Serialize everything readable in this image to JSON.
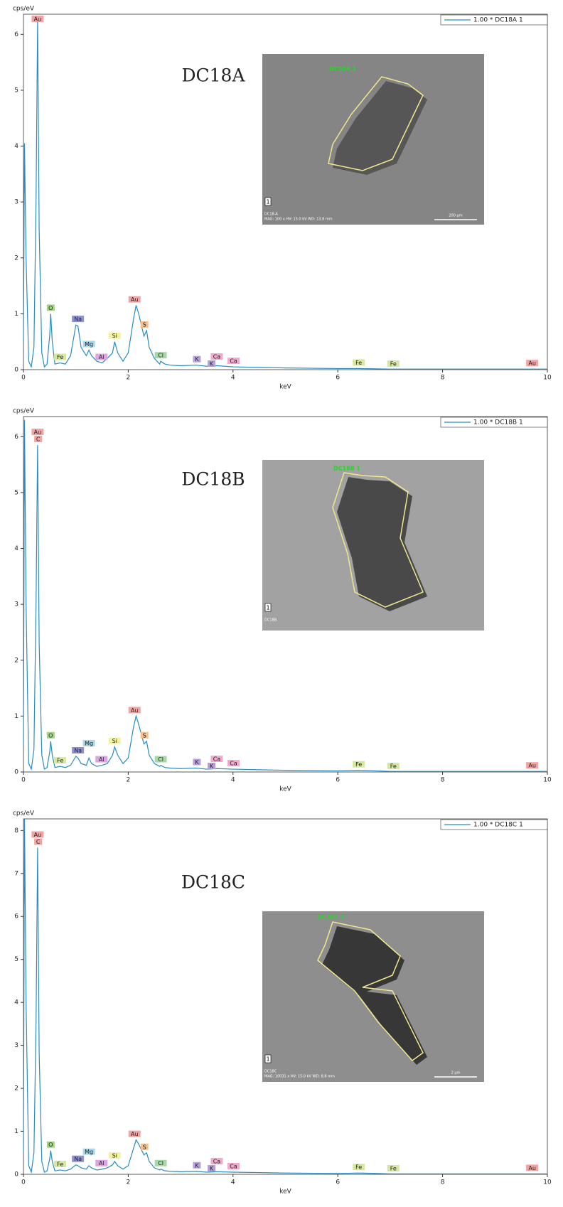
{
  "chart_data": [
    {
      "type": "line",
      "x_label": "keV",
      "y_label": "cps/eV",
      "x": [
        0,
        0.02,
        0.05,
        0.1,
        0.15,
        0.2,
        0.24,
        0.27,
        0.3,
        0.35,
        0.4,
        0.45,
        0.5,
        0.52,
        0.55,
        0.6,
        0.7,
        0.8,
        0.9,
        1.0,
        1.04,
        1.1,
        1.2,
        1.25,
        1.3,
        1.4,
        1.5,
        1.6,
        1.7,
        1.74,
        1.8,
        1.9,
        2.0,
        2.1,
        2.15,
        2.2,
        2.3,
        2.35,
        2.4,
        2.5,
        2.6,
        2.62,
        2.7,
        2.8,
        3.0,
        3.3,
        3.5,
        3.7,
        4.0,
        4.5,
        5,
        6,
        6.4,
        7,
        8,
        9,
        9.7,
        10
      ],
      "series": [
        {
          "name": "1.00 * DC18A 1",
          "color": "#2a8cc0",
          "values": [
            0.5,
            4.05,
            2.0,
            0.15,
            0.05,
            0.4,
            3,
            6.25,
            2.5,
            0.3,
            0.05,
            0.1,
            0.6,
            1.0,
            0.5,
            0.1,
            0.12,
            0.1,
            0.25,
            0.8,
            0.78,
            0.4,
            0.25,
            0.35,
            0.25,
            0.15,
            0.12,
            0.2,
            0.3,
            0.5,
            0.3,
            0.15,
            0.3,
            0.9,
            1.15,
            1.0,
            0.6,
            0.7,
            0.4,
            0.2,
            0.1,
            0.15,
            0.1,
            0.08,
            0.07,
            0.08,
            0.06,
            0.07,
            0.05,
            0.04,
            0.03,
            0.02,
            0.02,
            0.01,
            0.01,
            0.01,
            0.01,
            0.01
          ]
        }
      ],
      "xlim": [
        0,
        10
      ],
      "ylim": [
        0,
        6.36
      ],
      "xticks": [
        0,
        2,
        4,
        6,
        8,
        10
      ],
      "yticks": [
        0,
        1,
        2,
        3,
        4,
        5,
        6
      ],
      "legend": "upper right",
      "annotations": [
        {
          "text": "Au",
          "x": 0.27
        },
        {
          "text": "O",
          "x": 0.52
        },
        {
          "text": "Fe",
          "x": 0.7
        },
        {
          "text": "Na",
          "x": 1.04
        },
        {
          "text": "Mg",
          "x": 1.25
        },
        {
          "text": "Al",
          "x": 1.49
        },
        {
          "text": "Si",
          "x": 1.74
        },
        {
          "text": "Au",
          "x": 2.12
        },
        {
          "text": "S",
          "x": 2.31
        },
        {
          "text": "Cl",
          "x": 2.62
        },
        {
          "text": "K",
          "x": 3.31
        },
        {
          "text": "K",
          "x": 3.59
        },
        {
          "text": "Ca",
          "x": 3.69
        },
        {
          "text": "Ca",
          "x": 4.01
        },
        {
          "text": "Fe",
          "x": 6.4
        },
        {
          "text": "Fe",
          "x": 7.06
        },
        {
          "text": "Au",
          "x": 9.71
        }
      ],
      "label_colors": {
        "Au": "#f2a3a3",
        "C": "#f2a3a3",
        "O": "#a6d38a",
        "Fe": "#d6e8a0",
        "Na": "#8e90d0",
        "Mg": "#a6d8ea",
        "Al": "#d9a6e0",
        "Si": "#f2f2a0",
        "S": "#f4c08e",
        "Cl": "#a8d8a8",
        "K": "#b7a0d8",
        "Ca": "#f3a8cf"
      },
      "inset": {
        "label": "DC18A",
        "region": "DC18A 1",
        "marker": "1",
        "info": [
          "DC18-A",
          "MAG: 100 x  HV: 15.0 kV  WD: 13.8 mm"
        ],
        "scale": "200 µm"
      }
    },
    {
      "type": "line",
      "x_label": "keV",
      "y_label": "cps/eV",
      "x": [
        0,
        0.02,
        0.05,
        0.1,
        0.15,
        0.2,
        0.24,
        0.27,
        0.3,
        0.35,
        0.4,
        0.45,
        0.5,
        0.52,
        0.55,
        0.6,
        0.7,
        0.8,
        0.9,
        1.0,
        1.04,
        1.1,
        1.2,
        1.25,
        1.3,
        1.4,
        1.5,
        1.6,
        1.7,
        1.74,
        1.8,
        1.9,
        2.0,
        2.1,
        2.15,
        2.2,
        2.3,
        2.35,
        2.4,
        2.5,
        2.6,
        2.62,
        2.7,
        2.8,
        3.0,
        3.3,
        3.5,
        3.7,
        4.0,
        4.5,
        5,
        6,
        6.4,
        7,
        8,
        9,
        9.7,
        10
      ],
      "series": [
        {
          "name": "1.00 * DC18B 1",
          "color": "#2a8cc0",
          "values": [
            0.5,
            6.3,
            3.0,
            0.15,
            0.05,
            0.4,
            3,
            5.85,
            2.3,
            0.3,
            0.05,
            0.08,
            0.35,
            0.55,
            0.3,
            0.08,
            0.1,
            0.08,
            0.12,
            0.28,
            0.25,
            0.15,
            0.12,
            0.25,
            0.15,
            0.1,
            0.12,
            0.15,
            0.3,
            0.45,
            0.3,
            0.15,
            0.25,
            0.8,
            1.0,
            0.85,
            0.5,
            0.55,
            0.3,
            0.15,
            0.1,
            0.12,
            0.08,
            0.07,
            0.06,
            0.07,
            0.05,
            0.06,
            0.05,
            0.04,
            0.03,
            0.02,
            0.03,
            0.01,
            0.01,
            0.01,
            0.01,
            0.01
          ]
        }
      ],
      "xlim": [
        0,
        10
      ],
      "ylim": [
        0,
        6.36
      ],
      "xticks": [
        0,
        2,
        4,
        6,
        8,
        10
      ],
      "yticks": [
        0,
        1,
        2,
        3,
        4,
        5,
        6
      ],
      "legend": "upper right",
      "annotations": [
        {
          "text": "C",
          "x": 0.28
        },
        {
          "text": "Au",
          "x": 0.27
        },
        {
          "text": "O",
          "x": 0.52
        },
        {
          "text": "Fe",
          "x": 0.7
        },
        {
          "text": "Na",
          "x": 1.04
        },
        {
          "text": "Mg",
          "x": 1.25
        },
        {
          "text": "Al",
          "x": 1.49
        },
        {
          "text": "Si",
          "x": 1.74
        },
        {
          "text": "Au",
          "x": 2.12
        },
        {
          "text": "S",
          "x": 2.31
        },
        {
          "text": "Cl",
          "x": 2.62
        },
        {
          "text": "K",
          "x": 3.31
        },
        {
          "text": "K",
          "x": 3.59
        },
        {
          "text": "Ca",
          "x": 3.69
        },
        {
          "text": "Ca",
          "x": 4.01
        },
        {
          "text": "Fe",
          "x": 6.4
        },
        {
          "text": "Fe",
          "x": 7.06
        },
        {
          "text": "Au",
          "x": 9.71
        }
      ],
      "label_colors": {
        "Au": "#f2a3a3",
        "C": "#f2a3a3",
        "O": "#a6d38a",
        "Fe": "#d6e8a0",
        "Na": "#8e90d0",
        "Mg": "#a6d8ea",
        "Al": "#d9a6e0",
        "Si": "#f2f2a0",
        "S": "#f4c08e",
        "Cl": "#a8d8a8",
        "K": "#b7a0d8",
        "Ca": "#f3a8cf"
      },
      "inset": {
        "label": "DC18B",
        "region": "DC18B 1",
        "marker": "1",
        "info": [
          "DC18B"
        ]
      }
    },
    {
      "type": "line",
      "x_label": "keV",
      "y_label": "cps/eV",
      "x": [
        0,
        0.02,
        0.05,
        0.1,
        0.15,
        0.2,
        0.24,
        0.27,
        0.3,
        0.35,
        0.4,
        0.45,
        0.5,
        0.52,
        0.55,
        0.6,
        0.7,
        0.8,
        0.9,
        1.0,
        1.04,
        1.1,
        1.2,
        1.25,
        1.3,
        1.4,
        1.5,
        1.6,
        1.7,
        1.74,
        1.8,
        1.9,
        2.0,
        2.1,
        2.15,
        2.2,
        2.3,
        2.35,
        2.4,
        2.5,
        2.6,
        2.62,
        2.7,
        2.8,
        3.0,
        3.3,
        3.5,
        3.7,
        4.0,
        4.5,
        5,
        6,
        6.4,
        7,
        8,
        9,
        9.7,
        10
      ],
      "series": [
        {
          "name": "1.00 * DC18C 1",
          "color": "#2a8cc0",
          "values": [
            0.5,
            8.27,
            4,
            0.2,
            0.05,
            0.5,
            3.5,
            7.6,
            2.8,
            0.3,
            0.05,
            0.08,
            0.35,
            0.55,
            0.3,
            0.08,
            0.1,
            0.08,
            0.12,
            0.22,
            0.2,
            0.15,
            0.12,
            0.2,
            0.15,
            0.1,
            0.12,
            0.15,
            0.22,
            0.3,
            0.2,
            0.12,
            0.2,
            0.6,
            0.8,
            0.7,
            0.45,
            0.5,
            0.3,
            0.15,
            0.1,
            0.12,
            0.08,
            0.07,
            0.06,
            0.07,
            0.05,
            0.06,
            0.05,
            0.04,
            0.03,
            0.02,
            0.03,
            0.01,
            0.01,
            0.01,
            0.01,
            0.01
          ]
        }
      ],
      "xlim": [
        0,
        10
      ],
      "ylim": [
        0,
        8.27
      ],
      "xticks": [
        0,
        2,
        4,
        6,
        8,
        10
      ],
      "yticks": [
        0,
        1,
        2,
        3,
        4,
        5,
        6,
        7,
        8
      ],
      "legend": "upper right",
      "annotations": [
        {
          "text": "C",
          "x": 0.28
        },
        {
          "text": "Au",
          "x": 0.27
        },
        {
          "text": "O",
          "x": 0.52
        },
        {
          "text": "Fe",
          "x": 0.7
        },
        {
          "text": "Na",
          "x": 1.04
        },
        {
          "text": "Mg",
          "x": 1.25
        },
        {
          "text": "Al",
          "x": 1.49
        },
        {
          "text": "Si",
          "x": 1.74
        },
        {
          "text": "Au",
          "x": 2.12
        },
        {
          "text": "S",
          "x": 2.31
        },
        {
          "text": "Cl",
          "x": 2.62
        },
        {
          "text": "K",
          "x": 3.31
        },
        {
          "text": "K",
          "x": 3.59
        },
        {
          "text": "Ca",
          "x": 3.69
        },
        {
          "text": "Ca",
          "x": 4.01
        },
        {
          "text": "Fe",
          "x": 6.4
        },
        {
          "text": "Fe",
          "x": 7.06
        },
        {
          "text": "Au",
          "x": 9.71
        }
      ],
      "label_colors": {
        "Au": "#f2a3a3",
        "C": "#f2a3a3",
        "O": "#a6d38a",
        "Fe": "#d6e8a0",
        "Na": "#8e90d0",
        "Mg": "#a6d8ea",
        "Al": "#d9a6e0",
        "Si": "#f2f2a0",
        "S": "#f4c08e",
        "Cl": "#a8d8a8",
        "K": "#b7a0d8",
        "Ca": "#f3a8cf"
      },
      "inset": {
        "label": "DC18C",
        "region": "DC18C 1",
        "marker": "1",
        "info": [
          "DC18C",
          "MAG: 10031 x  HV: 15.0 kV  WD: 8.8 mm"
        ],
        "scale": "2 µm"
      }
    }
  ]
}
